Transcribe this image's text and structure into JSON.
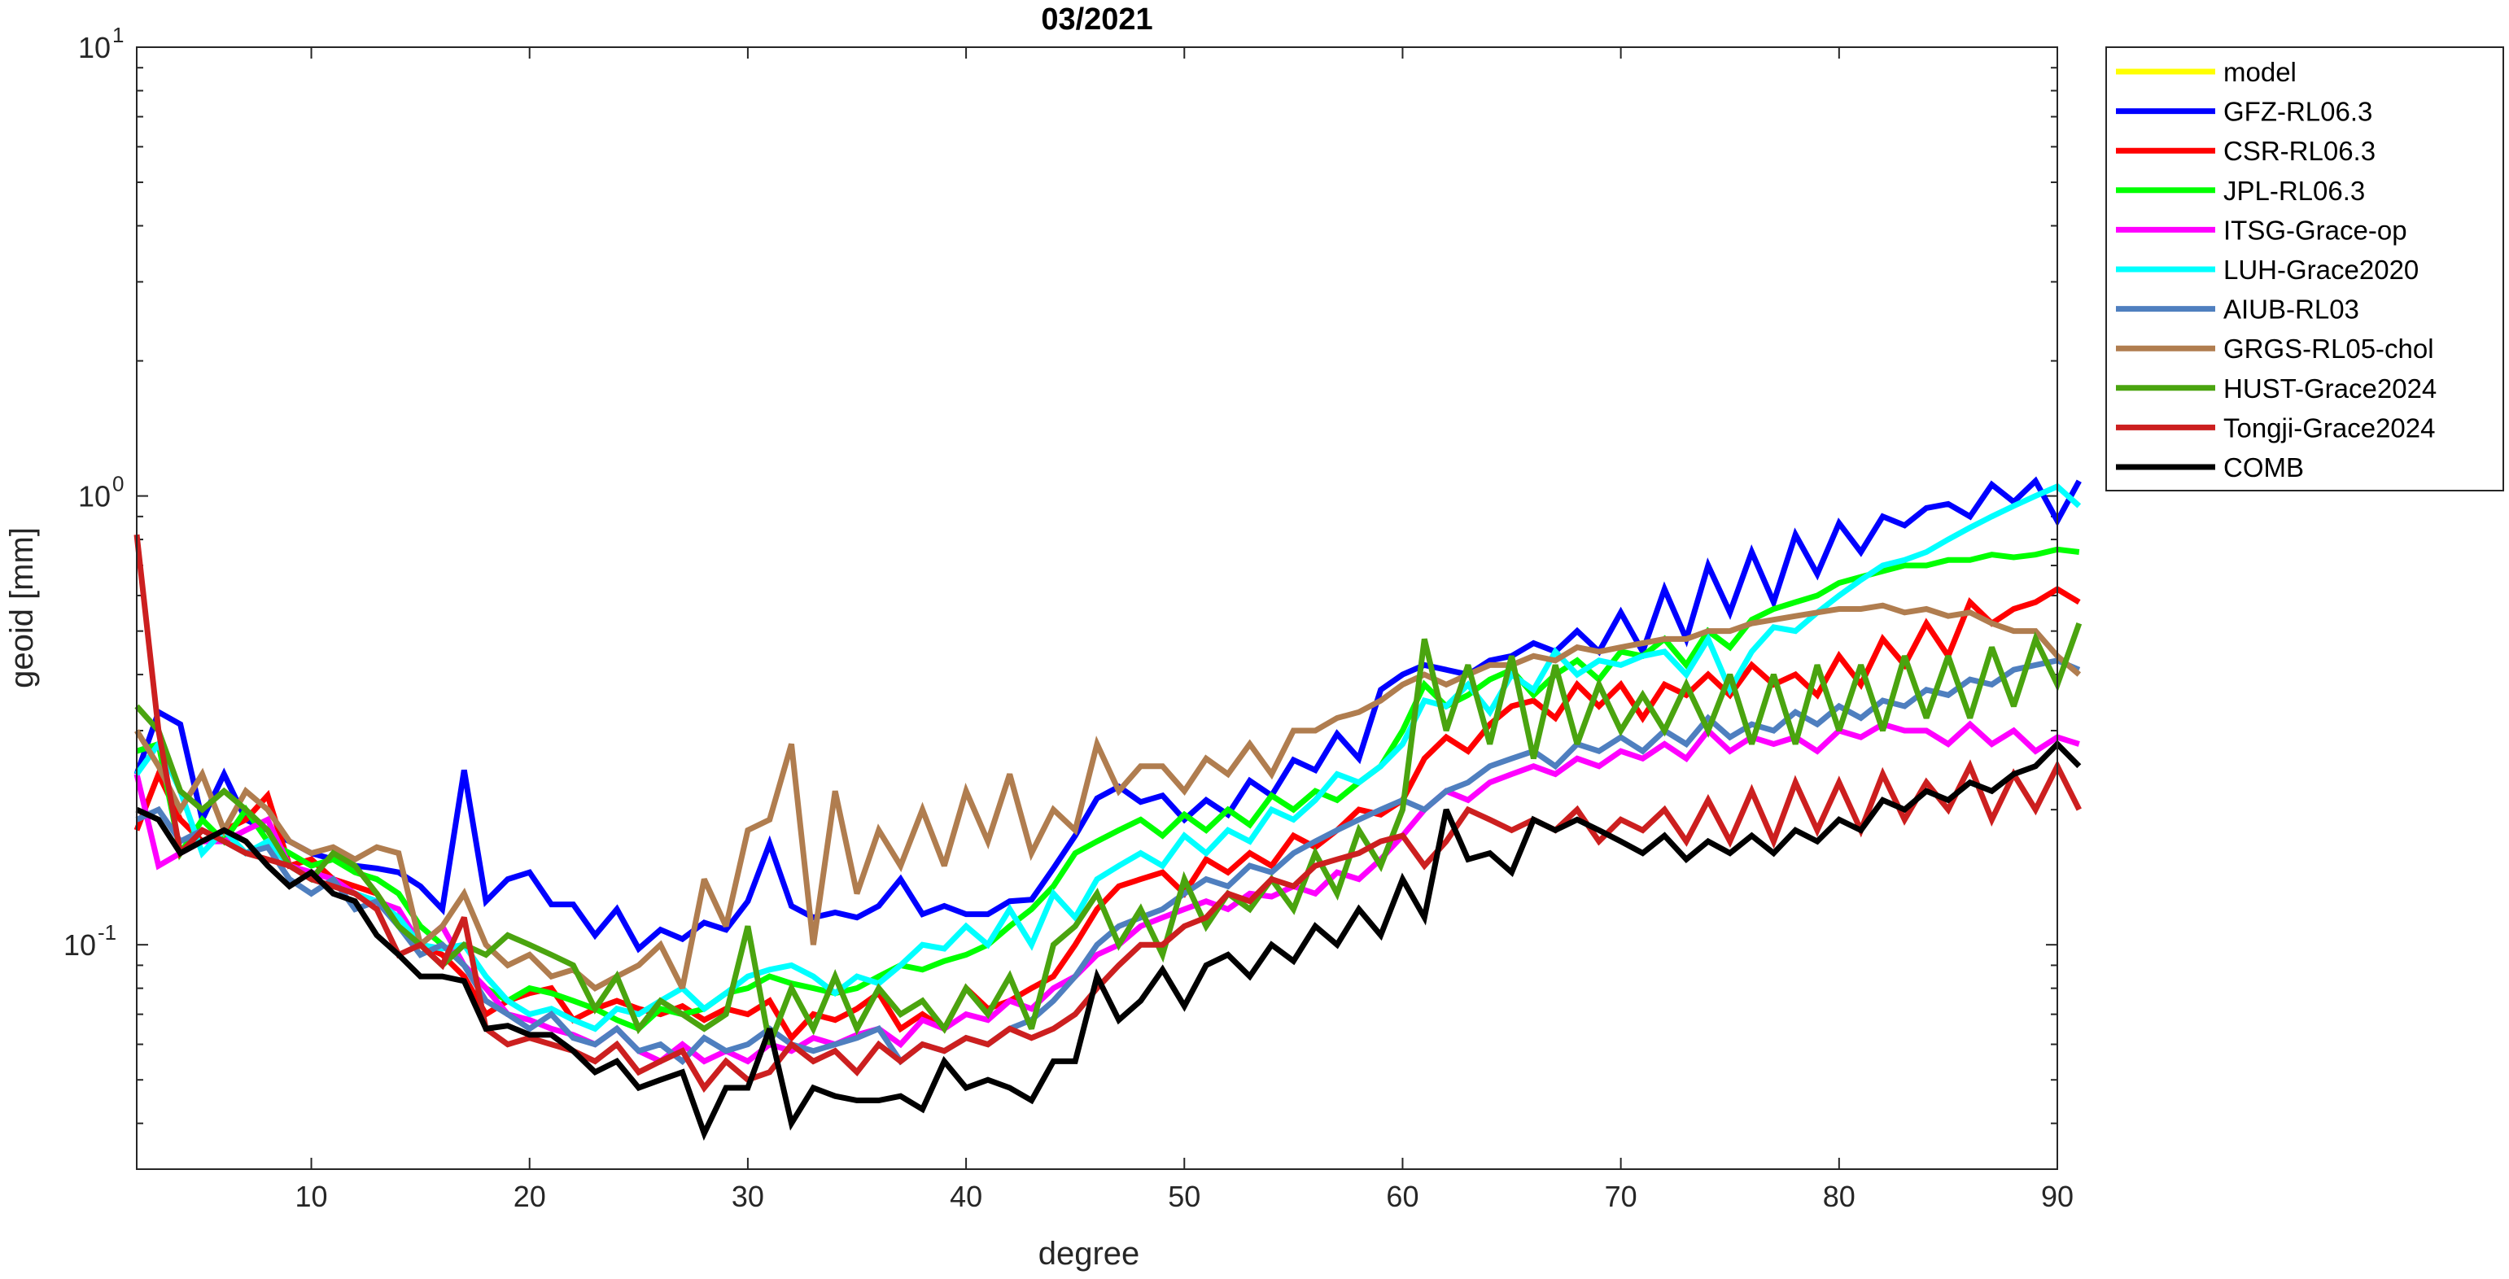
{
  "chart_data": {
    "type": "line",
    "title": "03/2021",
    "xlabel": "degree",
    "ylabel": "geoid [mm]",
    "xlim": [
      2,
      90
    ],
    "ylim": [
      0.03162,
      10
    ],
    "yscale": "log",
    "grid": false,
    "legend_position": "outside-top-right",
    "x_ticks": [
      10,
      20,
      30,
      40,
      50,
      60,
      70,
      80,
      90
    ],
    "x_tick_labels": [
      "10",
      "20",
      "30",
      "40",
      "50",
      "60",
      "70",
      "80",
      "90"
    ],
    "y_tick_labels": [
      {
        "value": 10,
        "base": "10",
        "exp": "1"
      },
      {
        "value": 1,
        "base": "10",
        "exp": "0"
      },
      {
        "value": 0.1,
        "base": "10",
        "exp": "-1"
      }
    ],
    "series": [
      {
        "name": "model",
        "color": "#ffff00",
        "values": []
      },
      {
        "name": "GFZ-RL06.3",
        "color": "#0000ff",
        "values": [
          0.24,
          0.33,
          0.31,
          0.19,
          0.24,
          0.19,
          0.18,
          0.17,
          0.16,
          0.155,
          0.15,
          0.148,
          0.145,
          0.135,
          0.12,
          0.245,
          0.125,
          0.14,
          0.145,
          0.123,
          0.123,
          0.105,
          0.12,
          0.098,
          0.108,
          0.103,
          0.112,
          0.108,
          0.125,
          0.168,
          0.122,
          0.115,
          0.118,
          0.115,
          0.122,
          0.14,
          0.117,
          0.122,
          0.117,
          0.117,
          0.125,
          0.126,
          0.148,
          0.175,
          0.212,
          0.225,
          0.208,
          0.215,
          0.19,
          0.21,
          0.195,
          0.232,
          0.215,
          0.258,
          0.245,
          0.295,
          0.26,
          0.37,
          0.4,
          0.42,
          0.41,
          0.4,
          0.43,
          0.44,
          0.47,
          0.45,
          0.5,
          0.45,
          0.55,
          0.45,
          0.62,
          0.48,
          0.7,
          0.55,
          0.75,
          0.58,
          0.82,
          0.67,
          0.87,
          0.75,
          0.9,
          0.86,
          0.94,
          0.96,
          0.9,
          1.06,
          0.97,
          1.08,
          0.88,
          1.08
        ]
      },
      {
        "name": "CSR-RL06.3",
        "color": "#ff0000",
        "values": [
          0.18,
          0.24,
          0.19,
          0.17,
          0.18,
          0.19,
          0.215,
          0.15,
          0.155,
          0.14,
          0.135,
          0.13,
          0.11,
          0.1,
          0.095,
          0.085,
          0.07,
          0.075,
          0.078,
          0.08,
          0.068,
          0.072,
          0.075,
          0.072,
          0.07,
          0.073,
          0.068,
          0.072,
          0.07,
          0.075,
          0.062,
          0.07,
          0.068,
          0.072,
          0.078,
          0.065,
          0.07,
          0.065,
          0.08,
          0.072,
          0.075,
          0.08,
          0.085,
          0.1,
          0.12,
          0.135,
          0.14,
          0.145,
          0.13,
          0.155,
          0.145,
          0.16,
          0.15,
          0.175,
          0.165,
          0.18,
          0.2,
          0.195,
          0.21,
          0.26,
          0.29,
          0.27,
          0.31,
          0.34,
          0.35,
          0.32,
          0.38,
          0.34,
          0.38,
          0.32,
          0.38,
          0.36,
          0.4,
          0.36,
          0.42,
          0.38,
          0.4,
          0.36,
          0.44,
          0.38,
          0.48,
          0.42,
          0.52,
          0.44,
          0.58,
          0.52,
          0.56,
          0.58,
          0.62,
          0.58
        ]
      },
      {
        "name": "JPL-RL06.3",
        "color": "#00ff00",
        "values": [
          0.27,
          0.28,
          0.16,
          0.19,
          0.17,
          0.2,
          0.17,
          0.16,
          0.15,
          0.155,
          0.145,
          0.14,
          0.13,
          0.11,
          0.1,
          0.09,
          0.08,
          0.075,
          0.08,
          0.078,
          0.075,
          0.072,
          0.068,
          0.065,
          0.072,
          0.07,
          0.072,
          0.078,
          0.08,
          0.085,
          0.082,
          0.08,
          0.078,
          0.08,
          0.085,
          0.09,
          0.088,
          0.092,
          0.095,
          0.1,
          0.11,
          0.12,
          0.135,
          0.16,
          0.17,
          0.18,
          0.19,
          0.175,
          0.195,
          0.18,
          0.2,
          0.185,
          0.215,
          0.2,
          0.22,
          0.21,
          0.23,
          0.25,
          0.3,
          0.38,
          0.34,
          0.36,
          0.39,
          0.41,
          0.36,
          0.4,
          0.43,
          0.39,
          0.45,
          0.44,
          0.48,
          0.42,
          0.5,
          0.46,
          0.53,
          0.56,
          0.58,
          0.6,
          0.64,
          0.66,
          0.68,
          0.7,
          0.7,
          0.72,
          0.72,
          0.74,
          0.73,
          0.74,
          0.76,
          0.75
        ]
      },
      {
        "name": "ITSG-Grace-op",
        "color": "#ff00ff",
        "values": [
          0.24,
          0.15,
          0.16,
          0.17,
          0.17,
          0.18,
          0.19,
          0.15,
          0.145,
          0.14,
          0.13,
          0.125,
          0.12,
          0.1,
          0.11,
          0.09,
          0.08,
          0.07,
          0.068,
          0.065,
          0.063,
          0.06,
          0.065,
          0.058,
          0.055,
          0.06,
          0.055,
          0.058,
          0.055,
          0.06,
          0.058,
          0.062,
          0.06,
          0.063,
          0.065,
          0.06,
          0.068,
          0.065,
          0.07,
          0.068,
          0.075,
          0.072,
          0.08,
          0.085,
          0.095,
          0.1,
          0.11,
          0.115,
          0.12,
          0.125,
          0.12,
          0.13,
          0.128,
          0.135,
          0.13,
          0.145,
          0.14,
          0.155,
          0.175,
          0.2,
          0.22,
          0.21,
          0.23,
          0.24,
          0.25,
          0.24,
          0.26,
          0.25,
          0.27,
          0.26,
          0.28,
          0.26,
          0.3,
          0.27,
          0.29,
          0.28,
          0.29,
          0.27,
          0.3,
          0.29,
          0.31,
          0.3,
          0.3,
          0.28,
          0.31,
          0.28,
          0.3,
          0.27,
          0.29,
          0.28
        ]
      },
      {
        "name": "LUH-Grace2020",
        "color": "#00ffff",
        "values": [
          0.24,
          0.28,
          0.22,
          0.16,
          0.18,
          0.16,
          0.17,
          0.15,
          0.14,
          0.135,
          0.13,
          0.125,
          0.115,
          0.1,
          0.098,
          0.1,
          0.085,
          0.075,
          0.07,
          0.072,
          0.068,
          0.065,
          0.072,
          0.07,
          0.075,
          0.08,
          0.072,
          0.078,
          0.085,
          0.088,
          0.09,
          0.085,
          0.078,
          0.085,
          0.082,
          0.09,
          0.1,
          0.098,
          0.11,
          0.1,
          0.12,
          0.1,
          0.13,
          0.115,
          0.14,
          0.15,
          0.16,
          0.15,
          0.175,
          0.16,
          0.18,
          0.17,
          0.2,
          0.19,
          0.21,
          0.24,
          0.23,
          0.25,
          0.28,
          0.35,
          0.34,
          0.38,
          0.33,
          0.4,
          0.37,
          0.45,
          0.4,
          0.43,
          0.42,
          0.44,
          0.45,
          0.4,
          0.48,
          0.37,
          0.45,
          0.51,
          0.5,
          0.55,
          0.6,
          0.65,
          0.7,
          0.72,
          0.75,
          0.8,
          0.85,
          0.9,
          0.95,
          1.0,
          1.05,
          0.95
        ]
      },
      {
        "name": "AIUB-RL03",
        "color": "#4f7fbf",
        "values": [
          0.19,
          0.2,
          0.17,
          0.18,
          0.17,
          0.16,
          0.165,
          0.14,
          0.13,
          0.14,
          0.12,
          0.125,
          0.11,
          0.095,
          0.1,
          0.09,
          0.075,
          0.07,
          0.065,
          0.07,
          0.062,
          0.06,
          0.065,
          0.058,
          0.06,
          0.055,
          0.062,
          0.058,
          0.06,
          0.065,
          0.06,
          0.058,
          0.06,
          0.062,
          0.065,
          0.055,
          0.06,
          0.058,
          0.062,
          0.06,
          0.065,
          0.068,
          0.075,
          0.085,
          0.1,
          0.11,
          0.115,
          0.12,
          0.13,
          0.14,
          0.135,
          0.15,
          0.145,
          0.16,
          0.17,
          0.18,
          0.19,
          0.2,
          0.21,
          0.2,
          0.22,
          0.23,
          0.25,
          0.26,
          0.27,
          0.25,
          0.28,
          0.27,
          0.29,
          0.27,
          0.3,
          0.28,
          0.32,
          0.29,
          0.31,
          0.3,
          0.33,
          0.31,
          0.34,
          0.32,
          0.35,
          0.34,
          0.37,
          0.36,
          0.39,
          0.38,
          0.41,
          0.42,
          0.43,
          0.41
        ]
      },
      {
        "name": "GRGS-RL05-chol",
        "color": "#b07d4f",
        "values": [
          0.3,
          0.25,
          0.2,
          0.24,
          0.18,
          0.22,
          0.2,
          0.17,
          0.16,
          0.165,
          0.155,
          0.165,
          0.16,
          0.1,
          0.11,
          0.13,
          0.1,
          0.09,
          0.095,
          0.085,
          0.088,
          0.08,
          0.085,
          0.09,
          0.1,
          0.08,
          0.14,
          0.11,
          0.18,
          0.19,
          0.28,
          0.1,
          0.22,
          0.13,
          0.18,
          0.15,
          0.2,
          0.15,
          0.22,
          0.17,
          0.24,
          0.16,
          0.2,
          0.18,
          0.28,
          0.22,
          0.25,
          0.25,
          0.22,
          0.26,
          0.24,
          0.28,
          0.24,
          0.3,
          0.3,
          0.32,
          0.33,
          0.35,
          0.38,
          0.4,
          0.38,
          0.4,
          0.42,
          0.42,
          0.44,
          0.43,
          0.46,
          0.45,
          0.46,
          0.47,
          0.48,
          0.48,
          0.5,
          0.5,
          0.52,
          0.53,
          0.54,
          0.55,
          0.56,
          0.56,
          0.57,
          0.55,
          0.56,
          0.54,
          0.55,
          0.52,
          0.5,
          0.5,
          0.44,
          0.4
        ]
      },
      {
        "name": "HUST-Grace2024",
        "color": "#4aa40f",
        "values": [
          0.34,
          0.3,
          0.22,
          0.2,
          0.22,
          0.2,
          0.18,
          0.15,
          0.14,
          0.16,
          0.15,
          0.13,
          0.11,
          0.1,
          0.09,
          0.1,
          0.095,
          0.105,
          0.1,
          0.095,
          0.09,
          0.072,
          0.085,
          0.065,
          0.075,
          0.07,
          0.065,
          0.07,
          0.11,
          0.06,
          0.08,
          0.065,
          0.085,
          0.065,
          0.08,
          0.07,
          0.075,
          0.065,
          0.08,
          0.07,
          0.085,
          0.065,
          0.1,
          0.11,
          0.13,
          0.1,
          0.12,
          0.095,
          0.14,
          0.11,
          0.13,
          0.12,
          0.14,
          0.12,
          0.16,
          0.13,
          0.18,
          0.15,
          0.2,
          0.48,
          0.3,
          0.42,
          0.28,
          0.44,
          0.26,
          0.42,
          0.28,
          0.38,
          0.3,
          0.36,
          0.3,
          0.38,
          0.3,
          0.4,
          0.28,
          0.4,
          0.28,
          0.42,
          0.3,
          0.42,
          0.3,
          0.44,
          0.32,
          0.44,
          0.32,
          0.46,
          0.34,
          0.48,
          0.38,
          0.52
        ]
      },
      {
        "name": "Tongji-Grace2024",
        "color": "#cc1f1f",
        "values": [
          0.82,
          0.3,
          0.16,
          0.18,
          0.17,
          0.16,
          0.155,
          0.15,
          0.14,
          0.135,
          0.13,
          0.12,
          0.095,
          0.1,
          0.09,
          0.115,
          0.065,
          0.06,
          0.062,
          0.06,
          0.058,
          0.055,
          0.06,
          0.052,
          0.055,
          0.058,
          0.048,
          0.055,
          0.05,
          0.052,
          0.06,
          0.055,
          0.058,
          0.052,
          0.06,
          0.055,
          0.06,
          0.058,
          0.062,
          0.06,
          0.065,
          0.062,
          0.065,
          0.07,
          0.08,
          0.09,
          0.1,
          0.1,
          0.11,
          0.115,
          0.13,
          0.125,
          0.14,
          0.135,
          0.15,
          0.155,
          0.16,
          0.17,
          0.175,
          0.15,
          0.17,
          0.2,
          0.19,
          0.18,
          0.19,
          0.18,
          0.2,
          0.17,
          0.19,
          0.18,
          0.2,
          0.17,
          0.21,
          0.17,
          0.22,
          0.17,
          0.23,
          0.18,
          0.23,
          0.18,
          0.24,
          0.19,
          0.23,
          0.2,
          0.25,
          0.19,
          0.24,
          0.2,
          0.25,
          0.2
        ]
      },
      {
        "name": "COMB",
        "color": "#000000",
        "values": [
          0.2,
          0.19,
          0.16,
          0.17,
          0.18,
          0.17,
          0.15,
          0.135,
          0.145,
          0.13,
          0.125,
          0.105,
          0.095,
          0.085,
          0.085,
          0.083,
          0.065,
          0.066,
          0.063,
          0.063,
          0.058,
          0.052,
          0.055,
          0.048,
          0.05,
          0.052,
          0.038,
          0.048,
          0.048,
          0.065,
          0.04,
          0.048,
          0.046,
          0.045,
          0.045,
          0.046,
          0.043,
          0.055,
          0.048,
          0.05,
          0.048,
          0.045,
          0.055,
          0.055,
          0.085,
          0.068,
          0.075,
          0.088,
          0.073,
          0.09,
          0.095,
          0.085,
          0.1,
          0.092,
          0.11,
          0.1,
          0.12,
          0.105,
          0.14,
          0.115,
          0.2,
          0.155,
          0.16,
          0.145,
          0.19,
          0.18,
          0.19,
          0.18,
          0.17,
          0.16,
          0.175,
          0.155,
          0.17,
          0.16,
          0.175,
          0.16,
          0.18,
          0.17,
          0.19,
          0.18,
          0.21,
          0.2,
          0.22,
          0.21,
          0.23,
          0.22,
          0.24,
          0.25,
          0.28,
          0.25
        ]
      }
    ]
  }
}
